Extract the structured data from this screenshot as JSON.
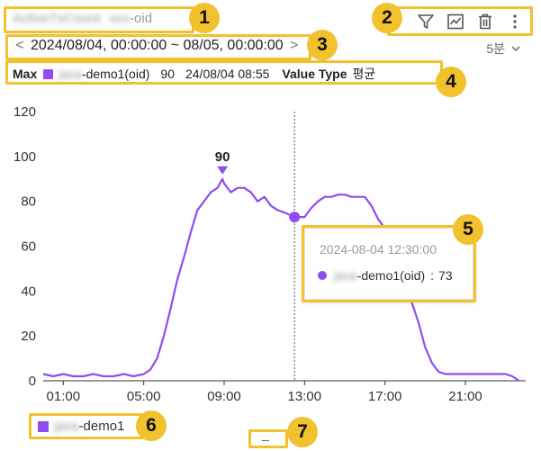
{
  "widget": {
    "title_blurred": "ActiveTxCount",
    "title_blurred2": "xxx",
    "title_suffix": "-oid"
  },
  "toolbar": {
    "filter_icon": "filter-icon",
    "chart_icon": "chart-icon",
    "delete_icon": "trash-icon",
    "more_icon": "more-vertical-icon"
  },
  "range": {
    "prev": "<",
    "text": "2024/08/04, 00:00:00 ~ 08/05, 00:00:00",
    "next": ">"
  },
  "interval": {
    "label": "5분",
    "chevron": "chevron-down-icon"
  },
  "max_row": {
    "max_label": "Max",
    "series_blurred": "java",
    "series_suffix": "-demo1(oid)",
    "value": "90",
    "time": "24/08/04 08:55",
    "value_type_label": "Value Type",
    "value_type": "평균"
  },
  "tooltip": {
    "time": "2024-08-04 12:30:00",
    "series_blurred": "java",
    "series_suffix": "-demo1(oid)",
    "sep": ":",
    "value": "73"
  },
  "legend": {
    "series_blurred": "java",
    "series_suffix": "-demo1"
  },
  "bottom_handle": "_",
  "annotations": [
    "1",
    "2",
    "3",
    "4",
    "5",
    "6",
    "7"
  ],
  "colors": {
    "series": "#8f4cf0",
    "highlight": "#f2c12e"
  },
  "chart_data": {
    "type": "line",
    "x_ticks": [
      "01:00",
      "05:00",
      "09:00",
      "13:00",
      "17:00",
      "21:00"
    ],
    "y_ticks": [
      "0",
      "20",
      "40",
      "60",
      "80",
      "100",
      "120"
    ],
    "ylim": [
      0,
      120
    ],
    "max_label": "90",
    "series": [
      {
        "name": "java-demo1",
        "x": [
          "00:00",
          "00:30",
          "01:00",
          "01:30",
          "02:00",
          "02:30",
          "03:00",
          "03:30",
          "04:00",
          "04:30",
          "05:00",
          "05:20",
          "05:40",
          "06:00",
          "06:20",
          "06:40",
          "07:00",
          "07:20",
          "07:40",
          "08:00",
          "08:20",
          "08:40",
          "08:55",
          "09:00",
          "09:20",
          "09:40",
          "10:00",
          "10:20",
          "10:40",
          "11:00",
          "11:20",
          "11:40",
          "12:00",
          "12:30",
          "13:00",
          "13:20",
          "13:40",
          "14:00",
          "14:20",
          "14:40",
          "15:00",
          "15:20",
          "15:40",
          "16:00",
          "16:20",
          "16:40",
          "17:00",
          "17:20",
          "17:40",
          "18:00",
          "18:20",
          "18:40",
          "19:00",
          "19:20",
          "19:40",
          "20:00",
          "20:30",
          "21:00",
          "21:30",
          "22:00",
          "22:30",
          "23:00",
          "23:20",
          "23:40"
        ],
        "values": [
          3,
          2,
          3,
          2,
          2,
          3,
          2,
          2,
          3,
          2,
          3,
          5,
          10,
          20,
          32,
          45,
          55,
          66,
          76,
          80,
          84,
          86,
          90,
          88,
          84,
          86,
          86,
          84,
          80,
          82,
          78,
          76,
          75,
          73,
          73,
          77,
          80,
          82,
          82,
          83,
          83,
          82,
          82,
          82,
          78,
          72,
          68,
          63,
          55,
          45,
          35,
          26,
          15,
          8,
          4,
          3,
          3,
          3,
          3,
          3,
          3,
          3,
          2,
          0
        ]
      }
    ],
    "cursor_x": "12:30",
    "cursor_value": 73
  }
}
